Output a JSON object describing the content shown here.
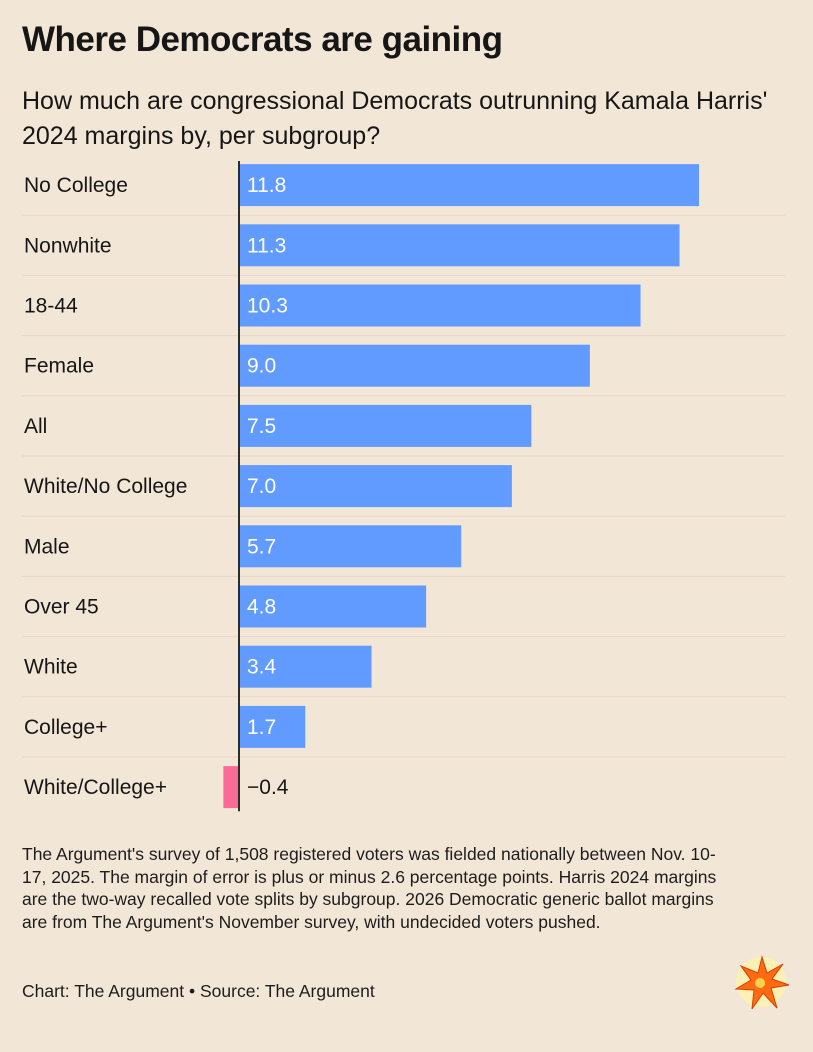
{
  "header": {
    "title": "Where Democrats are gaining",
    "subtitle": "How much are congressional Democrats outrunning Kamala Harris' 2024 margins by, per subgroup?"
  },
  "chart_data": {
    "type": "bar",
    "orientation": "horizontal",
    "title": "Where Democrats are gaining",
    "subtitle": "How much are congressional Democrats outrunning Kamala Harris' 2024 margins by, per subgroup?",
    "categories": [
      "No College",
      "Nonwhite",
      "18-44",
      "Female",
      "All",
      "White/No College",
      "Male",
      "Over 45",
      "White",
      "College+",
      "White/College+"
    ],
    "values": [
      11.8,
      11.3,
      10.3,
      9.0,
      7.5,
      7.0,
      5.7,
      4.8,
      3.4,
      1.7,
      -0.4
    ],
    "labels": [
      "11.8",
      "11.3",
      "10.3",
      "9.0",
      "7.5",
      "7.0",
      "5.7",
      "4.8",
      "3.4",
      "1.7",
      "−0.4"
    ],
    "xlim": [
      -0.4,
      11.8
    ],
    "xlabel": "",
    "ylabel": "",
    "colors": {
      "positive": "#619bff",
      "negative": "#fa6b98",
      "axis": "#2c2c2c",
      "grid": "#e6d8c5"
    }
  },
  "footer": {
    "note": "The Argument's survey of 1,508 registered voters was fielded nationally between Nov. 10-17, 2025. The margin of error is plus or minus 2.6 percentage points. Harris 2024 margins are the two-way recalled vote splits by subgroup. 2026 Democratic generic ballot margins are from The Argument's November survey, with undecided voters pushed.",
    "credit": "Chart: The Argument • Source: The Argument"
  },
  "logo": {
    "icon": "starburst-logo-icon",
    "color": "#ff6a13"
  }
}
